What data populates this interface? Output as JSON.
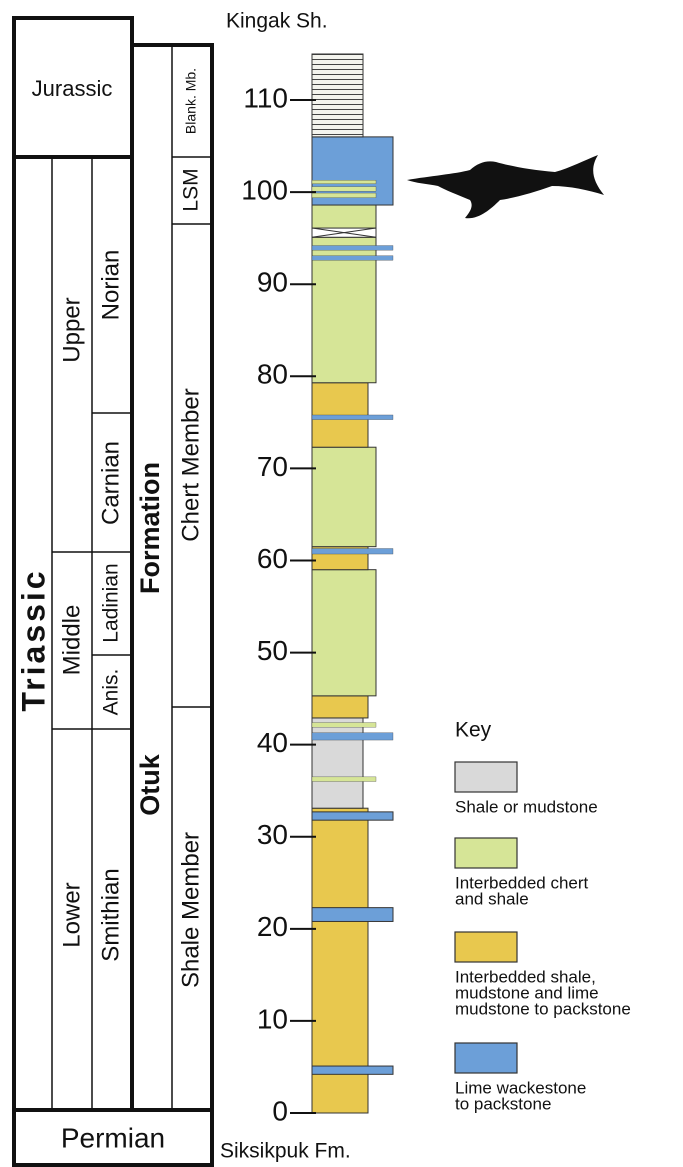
{
  "labels": {
    "top_unit": "Kingak Sh.",
    "bottom_unit": "Siksikpuk Fm."
  },
  "axis": {
    "lim": [
      0,
      115
    ],
    "ticks": [
      0,
      10,
      20,
      30,
      40,
      50,
      60,
      70,
      80,
      90,
      100,
      110
    ]
  },
  "columns": {
    "periods": [
      "Jurassic",
      "Triassic",
      "Permian"
    ],
    "epochs": [
      "Upper",
      "Middle",
      "Lower"
    ],
    "stages": [
      "Norian",
      "Carnian",
      "Ladinian",
      "Anis.",
      "Smithian"
    ],
    "formation": [
      "Otuk",
      "Formation"
    ],
    "members": [
      "Blank. Mb.",
      "LSM",
      "Chert Member",
      "Shale Member"
    ]
  },
  "beds": [
    {
      "base": 0,
      "top": 33.1,
      "color": "#e8c84e"
    },
    {
      "base": 33.1,
      "top": 42.9,
      "color": "#d9d9d9"
    },
    {
      "base": 42.9,
      "top": 45.3,
      "color": "#e8c84e"
    },
    {
      "base": 45.3,
      "top": 59,
      "color": "#d6e597"
    },
    {
      "base": 59,
      "top": 61.5,
      "color": "#e8c84e"
    },
    {
      "base": 61.5,
      "top": 72.3,
      "color": "#d6e597"
    },
    {
      "base": 72.3,
      "top": 79.3,
      "color": "#e8c84e"
    },
    {
      "base": 79.3,
      "top": 95.1,
      "color": "#d6e597"
    },
    {
      "base": 95.1,
      "top": 96.1,
      "color": null
    },
    {
      "base": 96.1,
      "top": 98.6,
      "color": "#d6e597"
    },
    {
      "base": 98.6,
      "top": 106,
      "color": "#6c9fd8"
    },
    {
      "base": 106,
      "top": 115,
      "color": "#ffffff"
    },
    {
      "base": 4.2,
      "top": 5.1,
      "color": "#6c9fd8"
    },
    {
      "base": 20.8,
      "top": 22.3,
      "color": "#6c9fd8"
    },
    {
      "base": 31.8,
      "top": 32.7,
      "color": "#6c9fd8"
    },
    {
      "base": 36.0,
      "top": 36.5,
      "color": "#d6e597"
    },
    {
      "base": 40.5,
      "top": 41.3,
      "color": "#6c9fd8"
    },
    {
      "base": 41.9,
      "top": 42.4,
      "color": "#d6e597"
    },
    {
      "base": 60.7,
      "top": 61.3,
      "color": "#6c9fd8"
    },
    {
      "base": 75.3,
      "top": 75.8,
      "color": "#6c9fd8"
    },
    {
      "base": 92.6,
      "top": 93.1,
      "color": "#6c9fd8"
    },
    {
      "base": 93.7,
      "top": 94.2,
      "color": "#6c9fd8"
    },
    {
      "base": 99.4,
      "top": 99.9,
      "color": "#d6e597"
    },
    {
      "base": 100.1,
      "top": 100.6,
      "color": "#d6e597"
    },
    {
      "base": 100.9,
      "top": 101.3,
      "color": "#d6e597"
    }
  ],
  "key": {
    "title": "Key",
    "items": [
      {
        "lines": [
          "Shale or mudstone"
        ],
        "color": "#d9d9d9"
      },
      {
        "lines": [
          "Interbedded chert",
          "and shale"
        ],
        "color": "#d6e597"
      },
      {
        "lines": [
          "Interbedded shale,",
          "mudstone and lime",
          "mudstone to packstone"
        ],
        "color": "#e8c84e"
      },
      {
        "lines": [
          "Lime wackestone",
          "to packstone"
        ],
        "color": "#6c9fd8"
      }
    ]
  }
}
